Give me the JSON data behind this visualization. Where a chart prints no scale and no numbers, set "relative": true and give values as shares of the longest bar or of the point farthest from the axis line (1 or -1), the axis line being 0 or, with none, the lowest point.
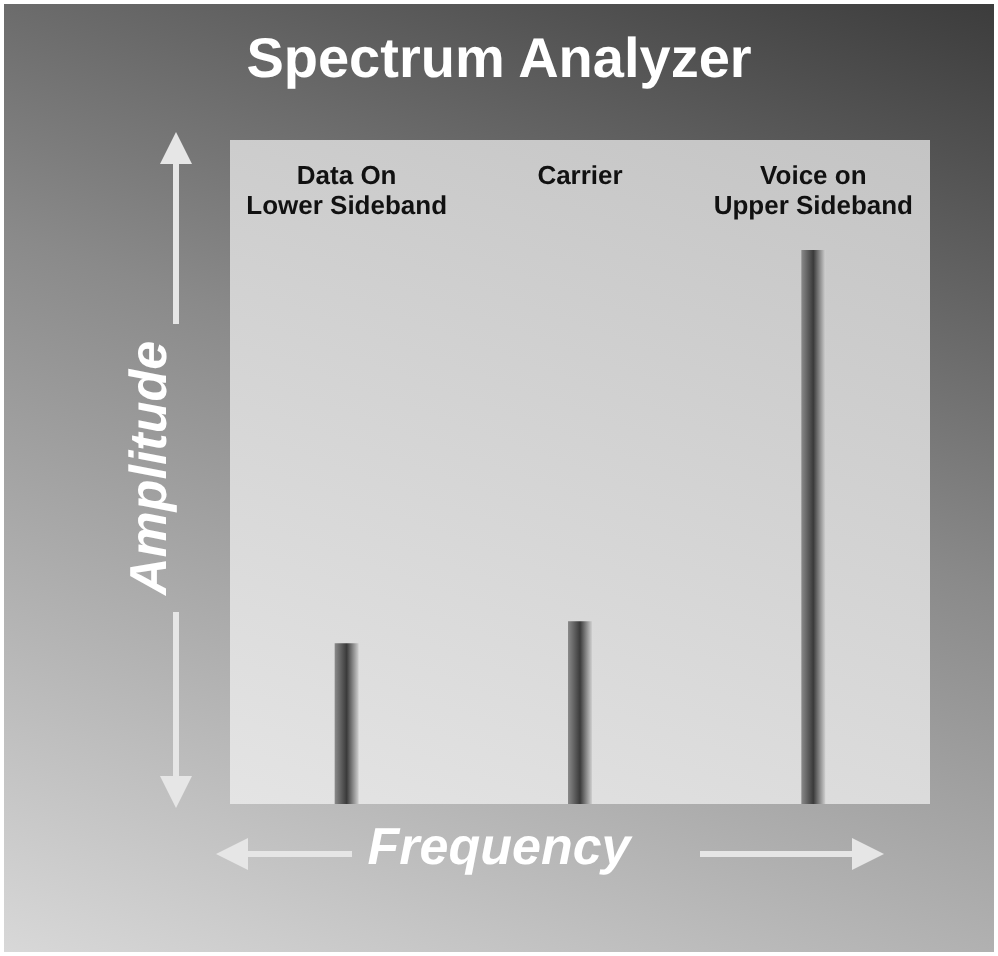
{
  "chart_data": {
    "type": "bar",
    "title": "Spectrum Analyzer",
    "xlabel": "Frequency",
    "ylabel": "Amplitude",
    "categories": [
      "Data On\nLower Sideband",
      "Carrier",
      "Voice on\nUpper Sideband"
    ],
    "values": [
      0.29,
      0.33,
      1
    ],
    "color": "#3a3a3a",
    "relative": true
  }
}
